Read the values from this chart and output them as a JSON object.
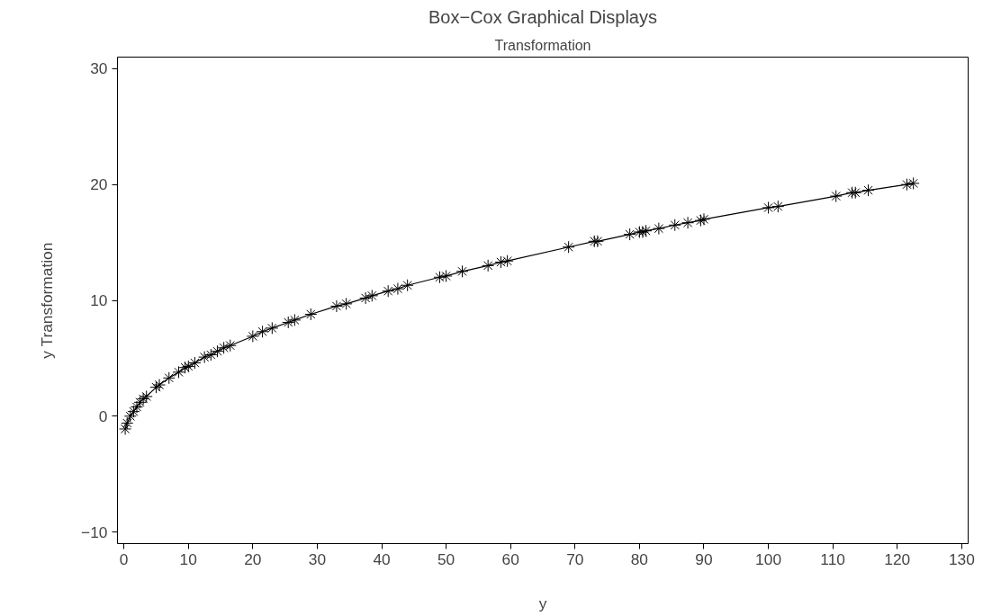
{
  "chart_data": {
    "type": "line",
    "title": "Box−Cox Graphical Displays",
    "subtitle": "Transformation",
    "xlabel": "y",
    "ylabel": "y Transformation",
    "x": [
      0.2,
      0.5,
      1,
      1.5,
      2,
      2.5,
      3,
      3.5,
      5,
      5.5,
      7,
      8.5,
      9.5,
      10,
      11,
      12.5,
      13.5,
      14.5,
      15.5,
      16.5,
      20,
      21.5,
      23,
      25.5,
      26.5,
      29,
      33,
      34.5,
      37.5,
      38.5,
      41,
      42.5,
      44,
      49,
      50,
      52.5,
      56.5,
      58.5,
      59.5,
      69,
      73,
      73.5,
      78.5,
      80,
      80.5,
      81,
      83,
      85.5,
      87.5,
      89.5,
      90,
      100,
      101.5,
      110.5,
      113,
      113.5,
      115.5,
      121.5,
      122.5
    ],
    "series": [
      {
        "color": "#000000",
        "values": [
          -1.1,
          -0.6,
          0,
          0.4,
          0.8,
          1.2,
          1.5,
          1.7,
          2.5,
          2.7,
          3.3,
          3.8,
          4.2,
          4.3,
          4.6,
          5.1,
          5.3,
          5.6,
          5.9,
          6.1,
          6.9,
          7.3,
          7.6,
          8.1,
          8.3,
          8.8,
          9.5,
          9.7,
          10.2,
          10.4,
          10.8,
          11.0,
          11.3,
          12.0,
          12.1,
          12.5,
          13.0,
          13.3,
          13.4,
          14.6,
          15.1,
          15.1,
          15.7,
          15.9,
          15.9,
          16.0,
          16.2,
          16.5,
          16.7,
          16.9,
          17.0,
          18.0,
          18.1,
          19.0,
          19.3,
          19.3,
          19.5,
          20.0,
          20.1
        ]
      }
    ],
    "xlim": [
      -1,
      131
    ],
    "ylim": [
      -11,
      31
    ],
    "xticks": [
      0,
      10,
      20,
      30,
      40,
      50,
      60,
      70,
      80,
      90,
      100,
      110,
      120,
      130
    ],
    "yticks": [
      {
        "value": -10,
        "label": "−10"
      },
      0,
      10,
      20,
      30
    ],
    "grid": false,
    "marker": "cross",
    "line_style": "solid"
  }
}
